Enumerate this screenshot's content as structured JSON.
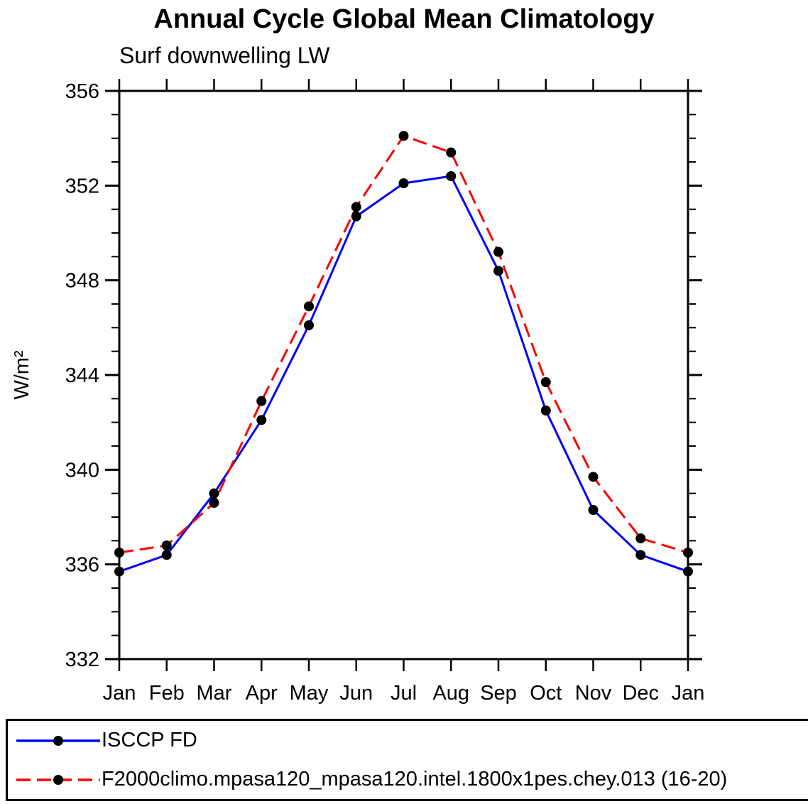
{
  "chart_data": {
    "type": "line",
    "title": "Annual Cycle Global Mean Climatology",
    "subtitle": "Surf downwelling LW",
    "ylabel": "W/m²",
    "xlabel": "",
    "x": [
      "Jan",
      "Feb",
      "Mar",
      "Apr",
      "May",
      "Jun",
      "Jul",
      "Aug",
      "Sep",
      "Oct",
      "Nov",
      "Dec",
      "Jan"
    ],
    "ylim": [
      332,
      356
    ],
    "ytick_step": 4,
    "ytick_minor_step": 1,
    "grid": false,
    "legend_position": "bottom",
    "marker_color": "#000000",
    "frame_color": "#000000",
    "series": [
      {
        "name": "ISCCP FD",
        "color": "#0000ff",
        "style": "solid",
        "values": [
          335.7,
          336.4,
          339.0,
          342.1,
          346.1,
          350.7,
          352.1,
          352.4,
          348.4,
          342.5,
          338.3,
          336.4,
          335.7
        ]
      },
      {
        "name": "F2000climo.mpasa120_mpasa120.intel.1800x1pes.chey.013 (16-20)",
        "color": "#ff0000",
        "style": "dashed",
        "values": [
          336.5,
          336.8,
          338.6,
          342.9,
          346.9,
          351.1,
          354.1,
          353.4,
          349.2,
          343.7,
          339.7,
          337.1,
          336.5
        ]
      }
    ]
  }
}
